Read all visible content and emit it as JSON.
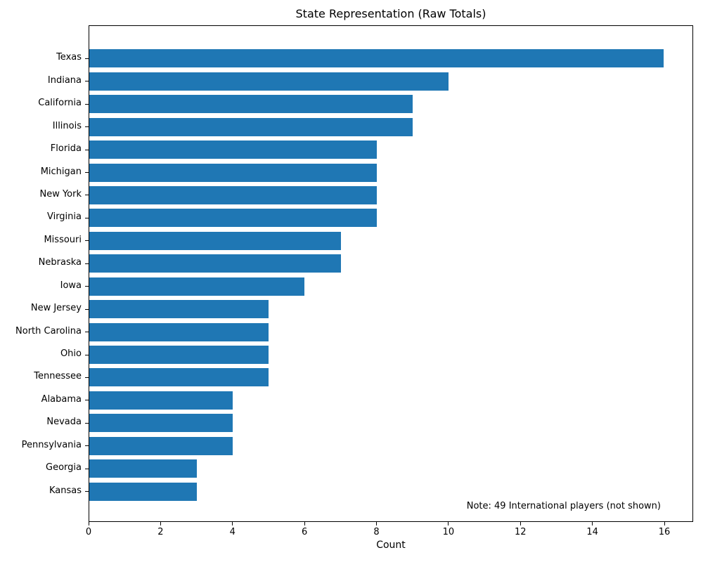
{
  "title": "State Representation (Raw Totals)",
  "chart_data": {
    "type": "bar",
    "orientation": "horizontal",
    "title": "State Representation (Raw Totals)",
    "xlabel": "Count",
    "ylabel": "",
    "categories": [
      "Texas",
      "Indiana",
      "California",
      "Illinois",
      "Florida",
      "Michigan",
      "New York",
      "Virginia",
      "Missouri",
      "Nebraska",
      "Iowa",
      "New Jersey",
      "North Carolina",
      "Ohio",
      "Tennessee",
      "Alabama",
      "Nevada",
      "Pennsylvania",
      "Georgia",
      "Kansas"
    ],
    "values": [
      16,
      10,
      9,
      9,
      8,
      8,
      8,
      8,
      7,
      7,
      6,
      5,
      5,
      5,
      5,
      4,
      4,
      4,
      3,
      3
    ],
    "xlim": [
      0,
      16.8
    ],
    "xticks": [
      0,
      2,
      4,
      6,
      8,
      10,
      12,
      14,
      16
    ],
    "bar_color": "#1f77b4",
    "annotation": "Note: 49 International players (not shown)",
    "grid": false,
    "legend": false
  }
}
